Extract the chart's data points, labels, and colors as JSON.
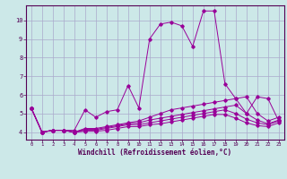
{
  "xlabel": "Windchill (Refroidissement éolien,°C)",
  "background_color": "#cce8e8",
  "grid_color": "#aaaacc",
  "line_color": "#990099",
  "xlim": [
    -0.5,
    23.5
  ],
  "ylim": [
    3.6,
    10.8
  ],
  "xticks": [
    0,
    1,
    2,
    3,
    4,
    5,
    6,
    7,
    8,
    9,
    10,
    11,
    12,
    13,
    14,
    15,
    16,
    17,
    18,
    19,
    20,
    21,
    22,
    23
  ],
  "yticks": [
    4,
    5,
    6,
    7,
    8,
    9,
    10
  ],
  "series": [
    [
      5.3,
      4.0,
      4.1,
      4.1,
      4.1,
      5.2,
      4.8,
      5.1,
      5.2,
      6.5,
      5.3,
      9.0,
      9.8,
      9.9,
      9.7,
      8.6,
      10.5,
      10.5,
      6.6,
      5.8,
      5.0,
      5.9,
      5.8,
      4.6
    ],
    [
      5.3,
      4.0,
      4.1,
      4.1,
      4.0,
      4.2,
      4.2,
      4.3,
      4.4,
      4.5,
      4.6,
      4.8,
      5.0,
      5.2,
      5.3,
      5.4,
      5.5,
      5.6,
      5.7,
      5.8,
      5.9,
      5.0,
      4.6,
      4.8
    ],
    [
      5.3,
      4.0,
      4.1,
      4.1,
      4.0,
      4.15,
      4.15,
      4.25,
      4.35,
      4.45,
      4.5,
      4.65,
      4.75,
      4.85,
      4.95,
      5.05,
      5.15,
      5.25,
      5.35,
      5.45,
      5.0,
      4.65,
      4.45,
      4.65
    ],
    [
      5.3,
      4.0,
      4.1,
      4.1,
      4.0,
      4.1,
      4.1,
      4.2,
      4.3,
      4.4,
      4.4,
      4.5,
      4.6,
      4.7,
      4.8,
      4.9,
      5.0,
      5.1,
      5.2,
      5.0,
      4.7,
      4.5,
      4.4,
      4.6
    ],
    [
      5.3,
      4.0,
      4.1,
      4.1,
      4.0,
      4.05,
      4.05,
      4.1,
      4.2,
      4.3,
      4.3,
      4.4,
      4.45,
      4.55,
      4.65,
      4.75,
      4.85,
      4.95,
      4.95,
      4.75,
      4.5,
      4.35,
      4.3,
      4.5
    ]
  ]
}
